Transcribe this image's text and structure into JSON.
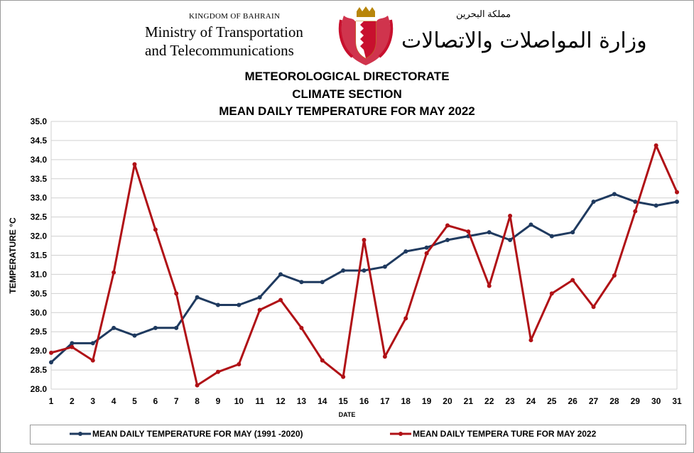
{
  "header": {
    "kingdom": "KINGDOM OF BAHRAIN",
    "ministry_line1": "Ministry of Transportation",
    "ministry_line2": "and Telecommunications",
    "arabic_kingdom": "مملكة البحرين",
    "arabic_ministry": "وزارة المواصلات والاتصالات"
  },
  "colors": {
    "series1": "#1f3a5f",
    "series2": "#b01116",
    "grid": "#d0d0d0",
    "crest_red": "#c8102e",
    "crest_gold": "#b8860b"
  },
  "chart_data": {
    "type": "line",
    "title": [
      "METEOROLOGICAL  DIRECTORATE",
      "CLIMATE  SECTION",
      "MEAN  DAILY  TEMPERATURE  FOR  MAY  2022"
    ],
    "xlabel": "DATE",
    "ylabel": "TEMPERATURE °C",
    "ylim": [
      28.0,
      35.0
    ],
    "yticks": [
      "28.0",
      "28.5",
      "29.0",
      "29.5",
      "30.0",
      "30.5",
      "31.0",
      "31.5",
      "32.0",
      "32.5",
      "33.0",
      "33.5",
      "34.0",
      "34.5",
      "35.0"
    ],
    "x": [
      "1",
      "2",
      "3",
      "4",
      "5",
      "6",
      "7",
      "8",
      "9",
      "10",
      "11",
      "12",
      "13",
      "14",
      "15",
      "16",
      "17",
      "18",
      "19",
      "20",
      "21",
      "22",
      "23",
      "24",
      "25",
      "26",
      "27",
      "28",
      "29",
      "30",
      "31"
    ],
    "grid": "horizontal",
    "legend_position": "bottom",
    "series": [
      {
        "name": "MEAN DAILY TEMPERATURE FOR MAY (1991 -2020)",
        "values": [
          28.7,
          29.2,
          29.2,
          29.6,
          29.4,
          29.6,
          29.6,
          30.4,
          30.2,
          30.2,
          30.4,
          31.0,
          30.8,
          30.8,
          31.1,
          31.1,
          31.2,
          31.6,
          31.7,
          31.9,
          32.0,
          32.1,
          31.9,
          32.3,
          32.0,
          32.1,
          32.9,
          33.1,
          32.9,
          32.8,
          32.9
        ]
      },
      {
        "name": "MEAN DAILY TEMPERA TURE FOR MAY 2022",
        "values": [
          28.95,
          29.1,
          28.75,
          31.05,
          33.88,
          32.17,
          30.5,
          28.1,
          28.45,
          28.65,
          30.07,
          30.33,
          29.6,
          28.75,
          28.32,
          31.9,
          28.85,
          29.85,
          31.55,
          32.28,
          32.12,
          30.7,
          32.53,
          29.28,
          30.5,
          30.85,
          30.15,
          30.97,
          32.65,
          34.37,
          33.15
        ]
      }
    ]
  }
}
